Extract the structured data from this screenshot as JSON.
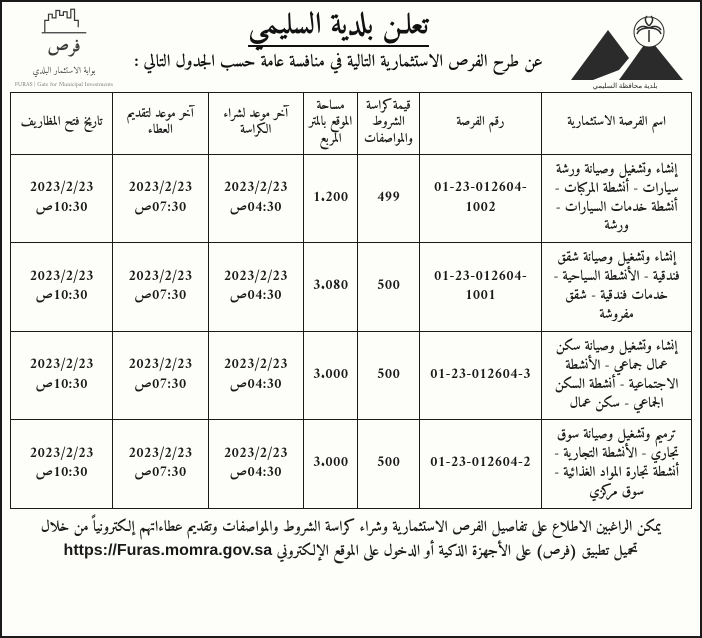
{
  "colors": {
    "border": "#1a1a1a",
    "text": "#111111",
    "background": "#fdfdfa"
  },
  "header": {
    "title": "تعلـن بلدية السليمي",
    "subtitle": "عن طرح الفرص الاستثمارية التالية في منافسة عامة حسب الجدول التالي :",
    "right_logo_caption": "بلدية محافظة السليمي",
    "left_logo_word": "فرص",
    "left_logo_line1": "بوابة الاستثمار البلدي",
    "left_logo_line2": "FURAS | Gate for Municipal Investments"
  },
  "table": {
    "headers": {
      "name": "اسم الفرصة الاستثمارية",
      "number": "رقم الفرصة",
      "price": "قيمة كراسة الشروط والمواصفات",
      "area": "مساحة الموقع بالمتر المربع",
      "deadline_buy": "آخر موعد لشراء الكراسة",
      "deadline_submit": "آخر موعد لتقديم العطاء",
      "open_date": "تاريخ فتح المظاريف"
    },
    "rows": [
      {
        "name": "إنشاء وتشغيل وصيانة ورشة سيارات - أنشطة المركبات - أنشطة خدمات السيارات - ورشة",
        "number": "01-23-012604-1002",
        "price": "499",
        "area": "1.200",
        "d_buy_date": "2023/2/23",
        "d_buy_time": "04:30ص",
        "d_sub_date": "2023/2/23",
        "d_sub_time": "07:30ص",
        "d_open_date": "2023/2/23",
        "d_open_time": "10:30ص"
      },
      {
        "name": "إنشاء وتشغيل وصيانة شقق فندقية - الأنشطة السياحية - خدمات فندقية - شقق مفروشة",
        "number": "01-23-012604-1001",
        "price": "500",
        "area": "3.080",
        "d_buy_date": "2023/2/23",
        "d_buy_time": "04:30ص",
        "d_sub_date": "2023/2/23",
        "d_sub_time": "07:30ص",
        "d_open_date": "2023/2/23",
        "d_open_time": "10:30ص"
      },
      {
        "name": "إنشاء وتشغيل وصيانة سكن عمال جماعي - الأنشطة الاجتماعية - أنشطة السكن الجماعي - سكن عمال",
        "number": "01-23-012604-3",
        "price": "500",
        "area": "3.000",
        "d_buy_date": "2023/2/23",
        "d_buy_time": "04:30ص",
        "d_sub_date": "2023/2/23",
        "d_sub_time": "07:30ص",
        "d_open_date": "2023/2/23",
        "d_open_time": "10:30ص"
      },
      {
        "name": "ترميم وتشغيل وصيانة سوق تجاري - الأنشطة التجارية - أنشطة تجارة المواد الغذائية - سوق مركزي",
        "number": "01-23-012604-2",
        "price": "500",
        "area": "3.000",
        "d_buy_date": "2023/2/23",
        "d_buy_time": "04:30ص",
        "d_sub_date": "2023/2/23",
        "d_sub_time": "07:30ص",
        "d_open_date": "2023/2/23",
        "d_open_time": "10:30ص"
      }
    ]
  },
  "footer": {
    "line1": "يمكن الراغبين الاطلاع على تفاصيل الفرص الاستثمارية وشراء كراسة الشروط والمواصفات وتقديم عطاءاتهم إلكترونياً من خلال",
    "line2_prefix": "تحميل تطبيق (فرص) على الأجهزة الذكية أو الدخول على الموقع الإلكتروني ",
    "url": "https://Furas.momra.gov.sa"
  }
}
